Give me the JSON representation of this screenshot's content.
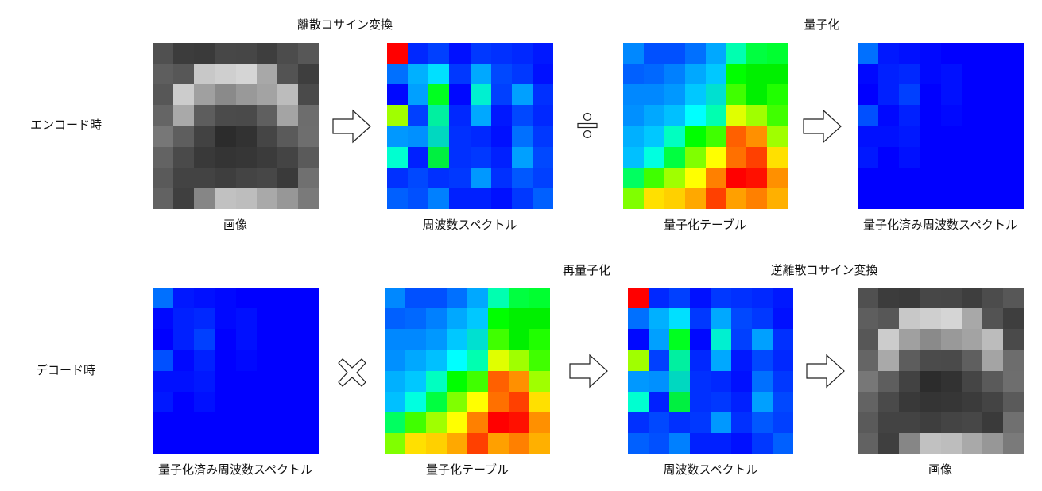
{
  "rows": {
    "encode": "エンコード時",
    "decode": "デコード時"
  },
  "step_labels": {
    "dct": "離散コサイン変換",
    "quantize": "量子化",
    "requantize": "再量子化",
    "idct": "逆離散コサイン変換"
  },
  "captions": {
    "enc_image": "画像",
    "enc_spectrum": "周波数スペクトル",
    "enc_table": "量子化テーブル",
    "enc_quantized": "量子化済み周波数スペクトル",
    "dec_quantized": "量子化済み周波数スペクトル",
    "dec_table": "量子化テーブル",
    "dec_spectrum": "周波数スペクトル",
    "dec_image": "画像"
  },
  "operators": {
    "divide": "divide-icon",
    "multiply": "multiply-icon",
    "arrow": "right-arrow-icon"
  },
  "matrices": {
    "image": [
      [
        "#505050",
        "#3c3c3c",
        "#3a3a3a",
        "#474747",
        "#464646",
        "#3e3e3e",
        "#4c4c4c",
        "#575757"
      ],
      [
        "#5e5e5e",
        "#575757",
        "#c8c8c8",
        "#cfcfcf",
        "#d5d5d5",
        "#a8a8a8",
        "#535353",
        "#3e3e3e"
      ],
      [
        "#575757",
        "#cccccc",
        "#a0a0a0",
        "#8a8a8a",
        "#999999",
        "#a3a3a3",
        "#bcbcbc",
        "#4a4a4a"
      ],
      [
        "#656565",
        "#a9a9a9",
        "#5d5d5d",
        "#4b4b4b",
        "#4a4a4a",
        "#5f5f5f",
        "#a4a4a4",
        "#6d6d6d"
      ],
      [
        "#777777",
        "#5e5e5e",
        "#424242",
        "#2c2c2c",
        "#323232",
        "#454545",
        "#5a5a5a",
        "#6e6e6e"
      ],
      [
        "#636363",
        "#4a4a4a",
        "#393939",
        "#343434",
        "#363636",
        "#3b3b3b",
        "#444444",
        "#5a5a5a"
      ],
      [
        "#5a5a5a",
        "#434343",
        "#434343",
        "#3e3e3e",
        "#444444",
        "#474747",
        "#3a3a3a",
        "#707070"
      ],
      [
        "#626262",
        "#3f3f3f",
        "#868686",
        "#c1c1c1",
        "#bdbdbd",
        "#a9a9a9",
        "#979797",
        "#7a7a7a"
      ]
    ],
    "spectrum": [
      [
        "#ff0000",
        "#0028ff",
        "#0040ff",
        "#0010ff",
        "#0038ff",
        "#0030ff",
        "#0028ff",
        "#0018ff"
      ],
      [
        "#0070ff",
        "#00b0ff",
        "#00e0ff",
        "#0038ff",
        "#00a8ff",
        "#0048ff",
        "#0038ff",
        "#0010ff"
      ],
      [
        "#0008ff",
        "#00a0ff",
        "#00ff20",
        "#0008ff",
        "#00f0d0",
        "#0040ff",
        "#00a0ff",
        "#0030ff"
      ],
      [
        "#a0ff00",
        "#0040ff",
        "#00f0a0",
        "#0028ff",
        "#00a8ff",
        "#0018ff",
        "#0048ff",
        "#0028ff"
      ],
      [
        "#0098ff",
        "#0090ff",
        "#00d8c0",
        "#0030ff",
        "#0028ff",
        "#0010ff",
        "#0070ff",
        "#0038ff"
      ],
      [
        "#00ffd0",
        "#0020ff",
        "#00f040",
        "#0030ff",
        "#0038ff",
        "#0020ff",
        "#00a0ff",
        "#0048ff"
      ],
      [
        "#0030ff",
        "#0048ff",
        "#0030ff",
        "#0038ff",
        "#0098ff",
        "#0030ff",
        "#0058ff",
        "#0040ff"
      ],
      [
        "#0060ff",
        "#0050ff",
        "#0080ff",
        "#0020ff",
        "#0020ff",
        "#0010ff",
        "#0038ff",
        "#0060ff"
      ]
    ],
    "table": [
      [
        "#0088ff",
        "#0050ff",
        "#0050ff",
        "#0070ff",
        "#00a8ff",
        "#00ffb0",
        "#00ff40",
        "#00ff30"
      ],
      [
        "#0060ff",
        "#0068ff",
        "#0080ff",
        "#00a8ff",
        "#00c8ff",
        "#00ff00",
        "#00f000",
        "#00f000"
      ],
      [
        "#0088ff",
        "#0088ff",
        "#0098ff",
        "#00c8ff",
        "#00e0d0",
        "#40ff00",
        "#00f000",
        "#20ff00"
      ],
      [
        "#0090ff",
        "#00a8ff",
        "#00c0ff",
        "#00ffff",
        "#00ffb0",
        "#e0ff00",
        "#a0ff00",
        "#40ff00"
      ],
      [
        "#00b0ff",
        "#00c8ff",
        "#00ffc0",
        "#00ff00",
        "#40ff00",
        "#ff6000",
        "#ff9000",
        "#a0ff00"
      ],
      [
        "#00c0ff",
        "#00ffe0",
        "#00ff40",
        "#80ff00",
        "#ffff00",
        "#ff7000",
        "#ff4000",
        "#ffe000"
      ],
      [
        "#00ff60",
        "#40ff00",
        "#a0ff00",
        "#ffff00",
        "#ff8000",
        "#ff0000",
        "#ff1000",
        "#ff9000"
      ],
      [
        "#80ff00",
        "#ffe000",
        "#ffd000",
        "#ffa800",
        "#ff4000",
        "#ffa000",
        "#ff8000",
        "#ffb000"
      ]
    ],
    "quantized": [
      [
        "#0070ff",
        "#0018ff",
        "#0010ff",
        "#0008ff",
        "#0000ff",
        "#0000ff",
        "#0000ff",
        "#0000ff"
      ],
      [
        "#0008ff",
        "#0020ff",
        "#0028ff",
        "#0008ff",
        "#0010ff",
        "#0000ff",
        "#0000ff",
        "#0000ff"
      ],
      [
        "#0000ff",
        "#0020ff",
        "#0040ff",
        "#0000ff",
        "#0010ff",
        "#0000ff",
        "#0000ff",
        "#0000ff"
      ],
      [
        "#0050ff",
        "#0008ff",
        "#0020ff",
        "#0000ff",
        "#0008ff",
        "#0000ff",
        "#0000ff",
        "#0000ff"
      ],
      [
        "#0010ff",
        "#0010ff",
        "#0018ff",
        "#0000ff",
        "#0000ff",
        "#0000ff",
        "#0000ff",
        "#0000ff"
      ],
      [
        "#0018ff",
        "#0000ff",
        "#0010ff",
        "#0000ff",
        "#0000ff",
        "#0000ff",
        "#0000ff",
        "#0000ff"
      ],
      [
        "#0000ff",
        "#0000ff",
        "#0000ff",
        "#0000ff",
        "#0000ff",
        "#0000ff",
        "#0000ff",
        "#0000ff"
      ],
      [
        "#0000ff",
        "#0000ff",
        "#0000ff",
        "#0000ff",
        "#0000ff",
        "#0000ff",
        "#0000ff",
        "#0000ff"
      ]
    ]
  }
}
